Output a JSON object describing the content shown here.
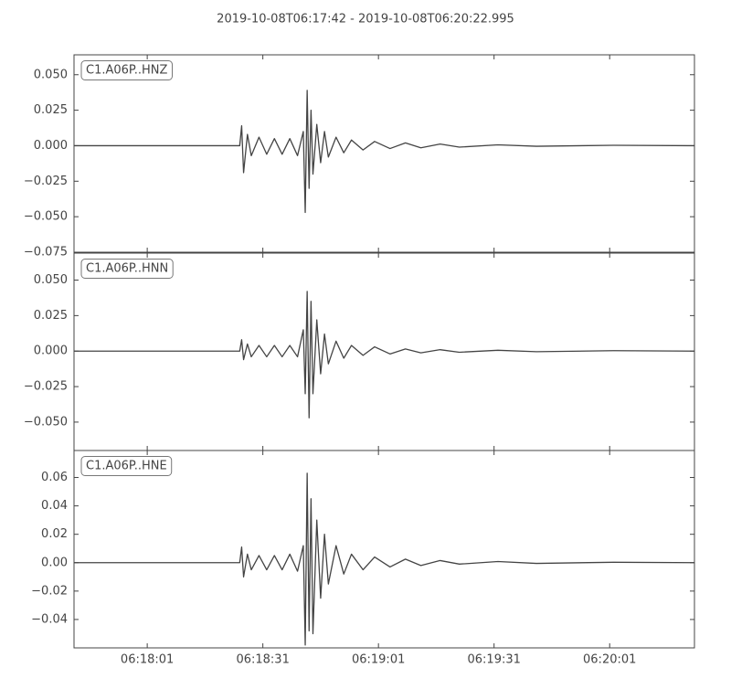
{
  "title": "2019-10-08T06:17:42  -  2019-10-08T06:20:22.995",
  "chart_data": [
    {
      "type": "line",
      "label": "C1.A06P..HNZ",
      "color": "#444444",
      "xlim": [
        0,
        161
      ],
      "ylim": [
        -0.075,
        0.064
      ],
      "yticks": [
        {
          "value": 0.05,
          "label": "0.050"
        },
        {
          "value": 0.025,
          "label": "0.025"
        },
        {
          "value": 0,
          "label": "0.000"
        },
        {
          "value": -0.025,
          "label": "−0.025"
        },
        {
          "value": -0.05,
          "label": "−0.050"
        },
        {
          "value": -0.075,
          "label": "−0.075"
        }
      ],
      "x": [
        0,
        43,
        43.5,
        44,
        45,
        46,
        48,
        50,
        52,
        54,
        56,
        58,
        59.5,
        60,
        60.5,
        61,
        61.5,
        62,
        63,
        64,
        65,
        66,
        68,
        70,
        72,
        75,
        78,
        82,
        86,
        90,
        95,
        100,
        110,
        120,
        140,
        161
      ],
      "values": [
        0,
        0,
        0.014,
        -0.019,
        0.008,
        -0.007,
        0.006,
        -0.006,
        0.005,
        -0.006,
        0.005,
        -0.007,
        0.01,
        -0.047,
        0.039,
        -0.03,
        0.025,
        -0.02,
        0.015,
        -0.012,
        0.01,
        -0.008,
        0.006,
        -0.005,
        0.004,
        -0.003,
        0.003,
        -0.002,
        0.002,
        -0.0015,
        0.0012,
        -0.001,
        0.0006,
        -0.0004,
        0.0003,
        0
      ]
    },
    {
      "type": "line",
      "label": "C1.A06P..HNN",
      "color": "#444444",
      "xlim": [
        0,
        161
      ],
      "ylim": [
        -0.07,
        0.069
      ],
      "yticks": [
        {
          "value": 0.05,
          "label": "0.050"
        },
        {
          "value": 0.025,
          "label": "0.025"
        },
        {
          "value": 0,
          "label": "0.000"
        },
        {
          "value": -0.025,
          "label": "−0.025"
        },
        {
          "value": -0.05,
          "label": "−0.050"
        }
      ],
      "x": [
        0,
        43,
        43.5,
        44,
        45,
        46,
        48,
        50,
        52,
        54,
        56,
        58,
        59.5,
        60,
        60.5,
        61,
        61.5,
        62,
        63,
        64,
        65,
        66,
        68,
        70,
        72,
        75,
        78,
        82,
        86,
        90,
        95,
        100,
        110,
        120,
        140,
        161
      ],
      "values": [
        0,
        0,
        0.008,
        -0.006,
        0.005,
        -0.004,
        0.004,
        -0.004,
        0.004,
        -0.004,
        0.004,
        -0.004,
        0.015,
        -0.03,
        0.042,
        -0.047,
        0.035,
        -0.03,
        0.022,
        -0.016,
        0.012,
        -0.009,
        0.007,
        -0.005,
        0.004,
        -0.003,
        0.003,
        -0.002,
        0.0015,
        -0.0012,
        0.001,
        -0.0008,
        0.0006,
        -0.0004,
        0.0003,
        0
      ]
    },
    {
      "type": "line",
      "label": "C1.A06P..HNE",
      "color": "#444444",
      "xlim": [
        0,
        161
      ],
      "ylim": [
        -0.06,
        0.079
      ],
      "yticks": [
        {
          "value": 0.06,
          "label": "0.06"
        },
        {
          "value": 0.04,
          "label": "0.04"
        },
        {
          "value": 0.02,
          "label": "0.02"
        },
        {
          "value": 0,
          "label": "0.00"
        },
        {
          "value": -0.02,
          "label": "−0.02"
        },
        {
          "value": -0.04,
          "label": "−0.04"
        }
      ],
      "xticks": [
        {
          "value": 19,
          "label": "06:18:01"
        },
        {
          "value": 49,
          "label": "06:18:31"
        },
        {
          "value": 79,
          "label": "06:19:01"
        },
        {
          "value": 109,
          "label": "06:19:31"
        },
        {
          "value": 139,
          "label": "06:20:01"
        }
      ],
      "x": [
        0,
        43,
        43.5,
        44,
        45,
        46,
        48,
        50,
        52,
        54,
        56,
        58,
        59.5,
        60,
        60.5,
        61,
        61.5,
        62,
        63,
        64,
        65,
        66,
        68,
        70,
        72,
        75,
        78,
        82,
        86,
        90,
        95,
        100,
        110,
        120,
        140,
        161
      ],
      "values": [
        0,
        0,
        0.011,
        -0.01,
        0.006,
        -0.005,
        0.005,
        -0.005,
        0.005,
        -0.005,
        0.006,
        -0.006,
        0.012,
        -0.058,
        0.063,
        -0.048,
        0.045,
        -0.05,
        0.03,
        -0.025,
        0.02,
        -0.015,
        0.012,
        -0.008,
        0.006,
        -0.005,
        0.004,
        -0.003,
        0.0025,
        -0.002,
        0.0015,
        -0.001,
        0.0008,
        -0.0005,
        0.0003,
        0
      ]
    }
  ]
}
